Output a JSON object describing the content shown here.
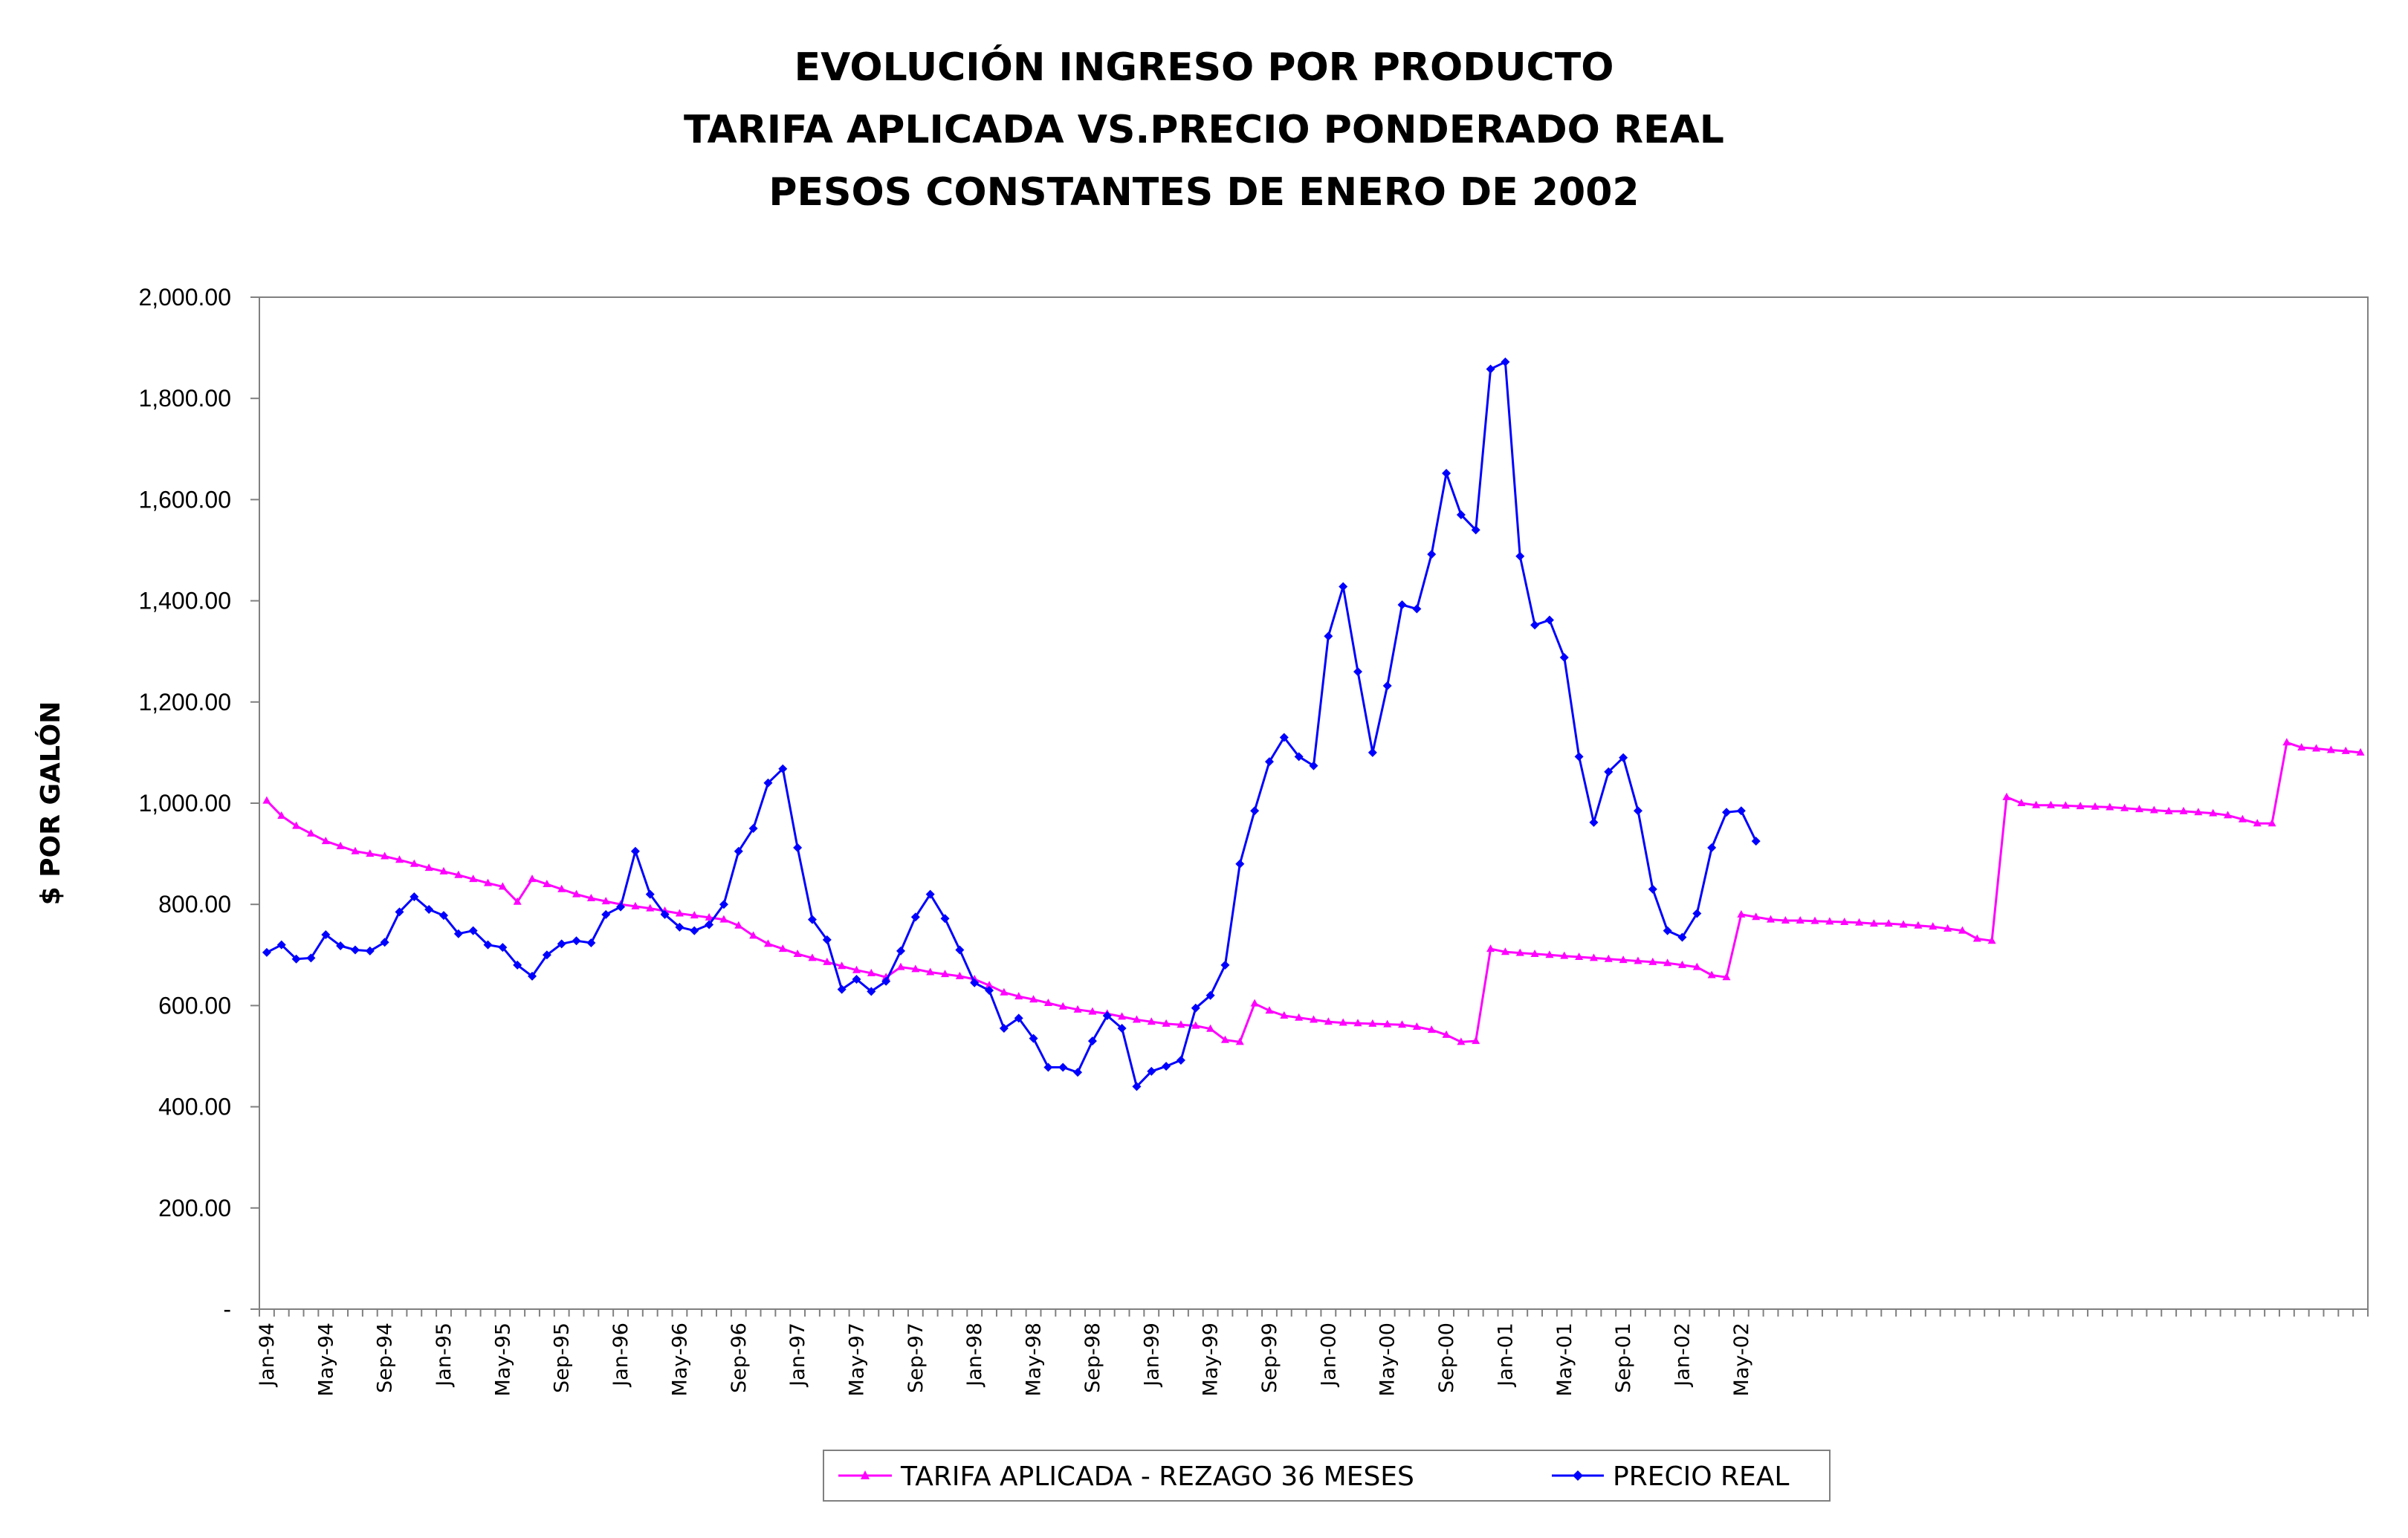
{
  "chart_data": {
    "type": "line",
    "title": [
      "EVOLUCIÓN INGRESO POR PRODUCTO",
      "TARIFA APLICADA VS.PRECIO PONDERADO REAL",
      "PESOS CONSTANTES DE ENERO DE 2002"
    ],
    "ylabel": "$ POR GALÓN",
    "xlabel": "",
    "ylim": [
      0,
      2000
    ],
    "yticks": [
      0,
      200,
      400,
      600,
      800,
      1000,
      1200,
      1400,
      1600,
      1800,
      2000
    ],
    "ytick_labels": [
      "-",
      "200.00",
      "400.00",
      "600.00",
      "800.00",
      "1,000.00",
      "1,200.00",
      "1,400.00",
      "1,600.00",
      "1,800.00",
      "2,000.00"
    ],
    "x_tick_labels": [
      "Jan-94",
      "May-94",
      "Sep-94",
      "Jan-95",
      "May-95",
      "Sep-95",
      "Jan-96",
      "May-96",
      "Sep-96",
      "Jan-97",
      "May-97",
      "Sep-97",
      "Jan-98",
      "May-98",
      "Sep-98",
      "Jan-99",
      "May-99",
      "Sep-99",
      "Jan-00",
      "May-00",
      "Sep-00",
      "Jan-01",
      "May-01",
      "Sep-01",
      "Jan-02",
      "May-02"
    ],
    "x_start": "Jan-94",
    "x_end": "Jul-02",
    "legend_position": "bottom",
    "series": [
      {
        "name": "TARIFA APLICADA - REZAGO 36 MESES",
        "color": "#ff00ff",
        "marker": "triangle",
        "values": [
          1005,
          975,
          955,
          940,
          925,
          915,
          905,
          900,
          895,
          888,
          880,
          872,
          865,
          858,
          850,
          842,
          835,
          805,
          850,
          840,
          830,
          820,
          812,
          806,
          800,
          796,
          792,
          787,
          782,
          778,
          774,
          770,
          758,
          738,
          722,
          712,
          702,
          694,
          686,
          678,
          670,
          664,
          656,
          676,
          672,
          666,
          662,
          658,
          652,
          640,
          626,
          618,
          612,
          605,
          598,
          592,
          588,
          584,
          578,
          572,
          568,
          564,
          562,
          560,
          554,
          532,
          528,
          604,
          590,
          580,
          576,
          572,
          568,
          566,
          565,
          564,
          563,
          562,
          558,
          552,
          542,
          528,
          530,
          712,
          706,
          704,
          702,
          700,
          698,
          696,
          694,
          692,
          690,
          688,
          686,
          684,
          680,
          676,
          660,
          656,
          780,
          775,
          770,
          768,
          768,
          767,
          766,
          765,
          764,
          762,
          762,
          760,
          758,
          756,
          752,
          748,
          732,
          728,
          1012,
          1000,
          996,
          996,
          995,
          994,
          993,
          992,
          990,
          988,
          986,
          984,
          984,
          982,
          980,
          976,
          968,
          960,
          960,
          1120,
          1110,
          1108,
          1105,
          1103,
          1100
        ]
      },
      {
        "name": "PRECIO REAL",
        "color": "#0000ff",
        "marker": "diamond",
        "values": [
          705,
          720,
          692,
          694,
          740,
          718,
          710,
          708,
          725,
          785,
          815,
          790,
          778,
          742,
          748,
          720,
          715,
          680,
          658,
          700,
          722,
          728,
          724,
          780,
          795,
          905,
          820,
          780,
          755,
          748,
          760,
          800,
          905,
          950,
          1040,
          1068,
          912,
          770,
          730,
          632,
          652,
          628,
          648,
          708,
          775,
          820,
          772,
          710,
          645,
          630,
          555,
          575,
          535,
          478,
          478,
          468,
          530,
          580,
          555,
          440,
          470,
          480,
          492,
          595,
          620,
          680,
          880,
          985,
          1082,
          1130,
          1092,
          1074,
          1330,
          1428,
          1260,
          1100,
          1232,
          1392,
          1384,
          1492,
          1652,
          1570,
          1540,
          1858,
          1872,
          1488,
          1352,
          1362,
          1288,
          1092,
          962,
          1062,
          1090,
          985,
          830,
          748,
          735,
          782,
          912,
          982,
          985,
          925
        ]
      }
    ]
  }
}
